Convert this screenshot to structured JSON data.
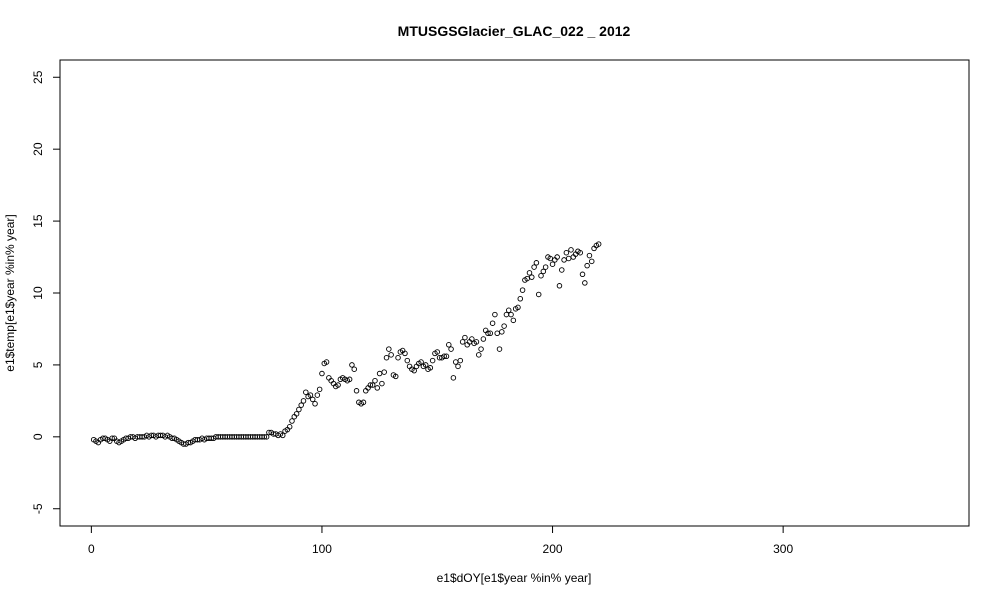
{
  "chart_data": {
    "type": "scatter",
    "title": "MTUSGSGlacier_GLAC_022 _ 2012",
    "x_label": "e1$dOY[e1$year %in% year]",
    "y_label": "e1$temp[e1$year %in% year]",
    "xlim": [
      -13.6,
      380.6
    ],
    "ylim": [
      -6.2,
      26.2
    ],
    "xticks": [
      0,
      100,
      200,
      300
    ],
    "yticks": [
      -5,
      0,
      5,
      10,
      15,
      20,
      25
    ],
    "color": "#000000",
    "x": [
      1,
      2,
      3,
      4,
      5,
      6,
      7,
      8,
      9,
      10,
      11,
      12,
      13,
      14,
      15,
      16,
      17,
      18,
      19,
      20,
      21,
      22,
      23,
      24,
      25,
      26,
      27,
      28,
      29,
      30,
      31,
      32,
      33,
      34,
      35,
      36,
      37,
      38,
      39,
      40,
      41,
      42,
      43,
      44,
      45,
      46,
      47,
      48,
      49,
      50,
      51,
      52,
      53,
      54,
      55,
      56,
      57,
      58,
      59,
      60,
      61,
      62,
      63,
      64,
      65,
      66,
      67,
      68,
      69,
      70,
      71,
      72,
      73,
      74,
      75,
      76,
      77,
      78,
      79,
      80,
      81,
      82,
      83,
      84,
      85,
      86,
      87,
      88,
      89,
      90,
      91,
      92,
      93,
      94,
      95,
      96,
      97,
      98,
      99,
      100,
      101,
      102,
      103,
      104,
      105,
      106,
      107,
      108,
      109,
      110,
      111,
      112,
      113,
      114,
      115,
      116,
      117,
      118,
      119,
      120,
      121,
      122,
      123,
      124,
      125,
      126,
      127,
      128,
      129,
      130,
      131,
      132,
      133,
      134,
      135,
      136,
      137,
      138,
      139,
      140,
      141,
      142,
      143,
      144,
      145,
      146,
      147,
      148,
      149,
      150,
      151,
      152,
      153,
      154,
      155,
      156,
      157,
      158,
      159,
      160,
      161,
      162,
      163,
      164,
      165,
      166,
      167,
      168,
      169,
      170,
      171,
      172,
      173,
      174,
      175,
      176,
      177,
      178,
      179,
      180,
      181,
      182,
      183,
      184,
      185,
      186,
      187,
      188,
      189,
      190,
      191,
      192,
      193,
      194,
      195,
      196,
      197,
      198,
      199,
      200,
      201,
      202,
      203,
      204,
      205,
      206,
      207,
      208,
      209,
      210,
      211,
      212,
      213,
      214,
      215,
      216,
      217,
      218,
      219,
      220
    ],
    "values": [
      -0.2,
      -0.3,
      -0.4,
      -0.2,
      -0.1,
      -0.1,
      -0.2,
      -0.3,
      -0.1,
      -0.1,
      -0.3,
      -0.4,
      -0.3,
      -0.2,
      -0.1,
      -0.1,
      0,
      0,
      -0.1,
      0,
      0,
      0,
      0,
      0.1,
      0,
      0.1,
      0.1,
      0,
      0.1,
      0.1,
      0.1,
      0,
      0.1,
      0,
      -0.1,
      -0.1,
      -0.2,
      -0.3,
      -0.4,
      -0.5,
      -0.5,
      -0.4,
      -0.4,
      -0.3,
      -0.2,
      -0.2,
      -0.2,
      -0.1,
      -0.2,
      -0.1,
      -0.1,
      -0.1,
      -0.1,
      0,
      0,
      0,
      0,
      0,
      0,
      0,
      0,
      0,
      0,
      0,
      0,
      0,
      0,
      0,
      0,
      0,
      0,
      0,
      0,
      0,
      0,
      0,
      0.3,
      0.3,
      0.2,
      0.2,
      0.1,
      0.2,
      0.1,
      0.4,
      0.5,
      0.7,
      1.1,
      1.4,
      1.6,
      1.9,
      2.2,
      2.5,
      3.1,
      2.8,
      2.9,
      2.6,
      2.3,
      2.9,
      3.3,
      4.4,
      5.1,
      5.2,
      4.1,
      3.9,
      3.7,
      3.5,
      3.6,
      4.0,
      4.1,
      4.0,
      3.9,
      4.0,
      5.0,
      4.7,
      3.2,
      2.4,
      2.3,
      2.4,
      3.2,
      3.4,
      3.6,
      3.6,
      3.9,
      3.4,
      4.4,
      3.7,
      4.5,
      5.5,
      6.1,
      5.7,
      4.3,
      4.2,
      5.5,
      5.9,
      6.0,
      5.8,
      5.3,
      4.9,
      4.7,
      4.6,
      4.9,
      5.1,
      5.2,
      4.9,
      5.0,
      4.7,
      4.8,
      5.3,
      5.8,
      5.9,
      5.5,
      5.5,
      5.6,
      5.6,
      6.4,
      6.1,
      4.1,
      5.2,
      4.9,
      5.3,
      6.6,
      6.9,
      6.4,
      6.6,
      6.8,
      6.5,
      6.6,
      5.7,
      6.1,
      6.8,
      7.4,
      7.2,
      7.2,
      7.9,
      8.5,
      7.2,
      6.1,
      7.3,
      7.7,
      8.5,
      8.8,
      8.5,
      8.1,
      8.9,
      9.0,
      9.6,
      10.2,
      10.9,
      11.0,
      11.4,
      11.1,
      11.8,
      12.1,
      9.9,
      11.2,
      11.5,
      11.8,
      12.5,
      12.4,
      12.0,
      12.3,
      12.5,
      10.5,
      11.6,
      12.3,
      12.8,
      12.4,
      13.0,
      12.5,
      12.7,
      12.9,
      12.8,
      11.3,
      10.7,
      11.9,
      12.6,
      12.2,
      13.1,
      13.3,
      13.4
    ]
  }
}
